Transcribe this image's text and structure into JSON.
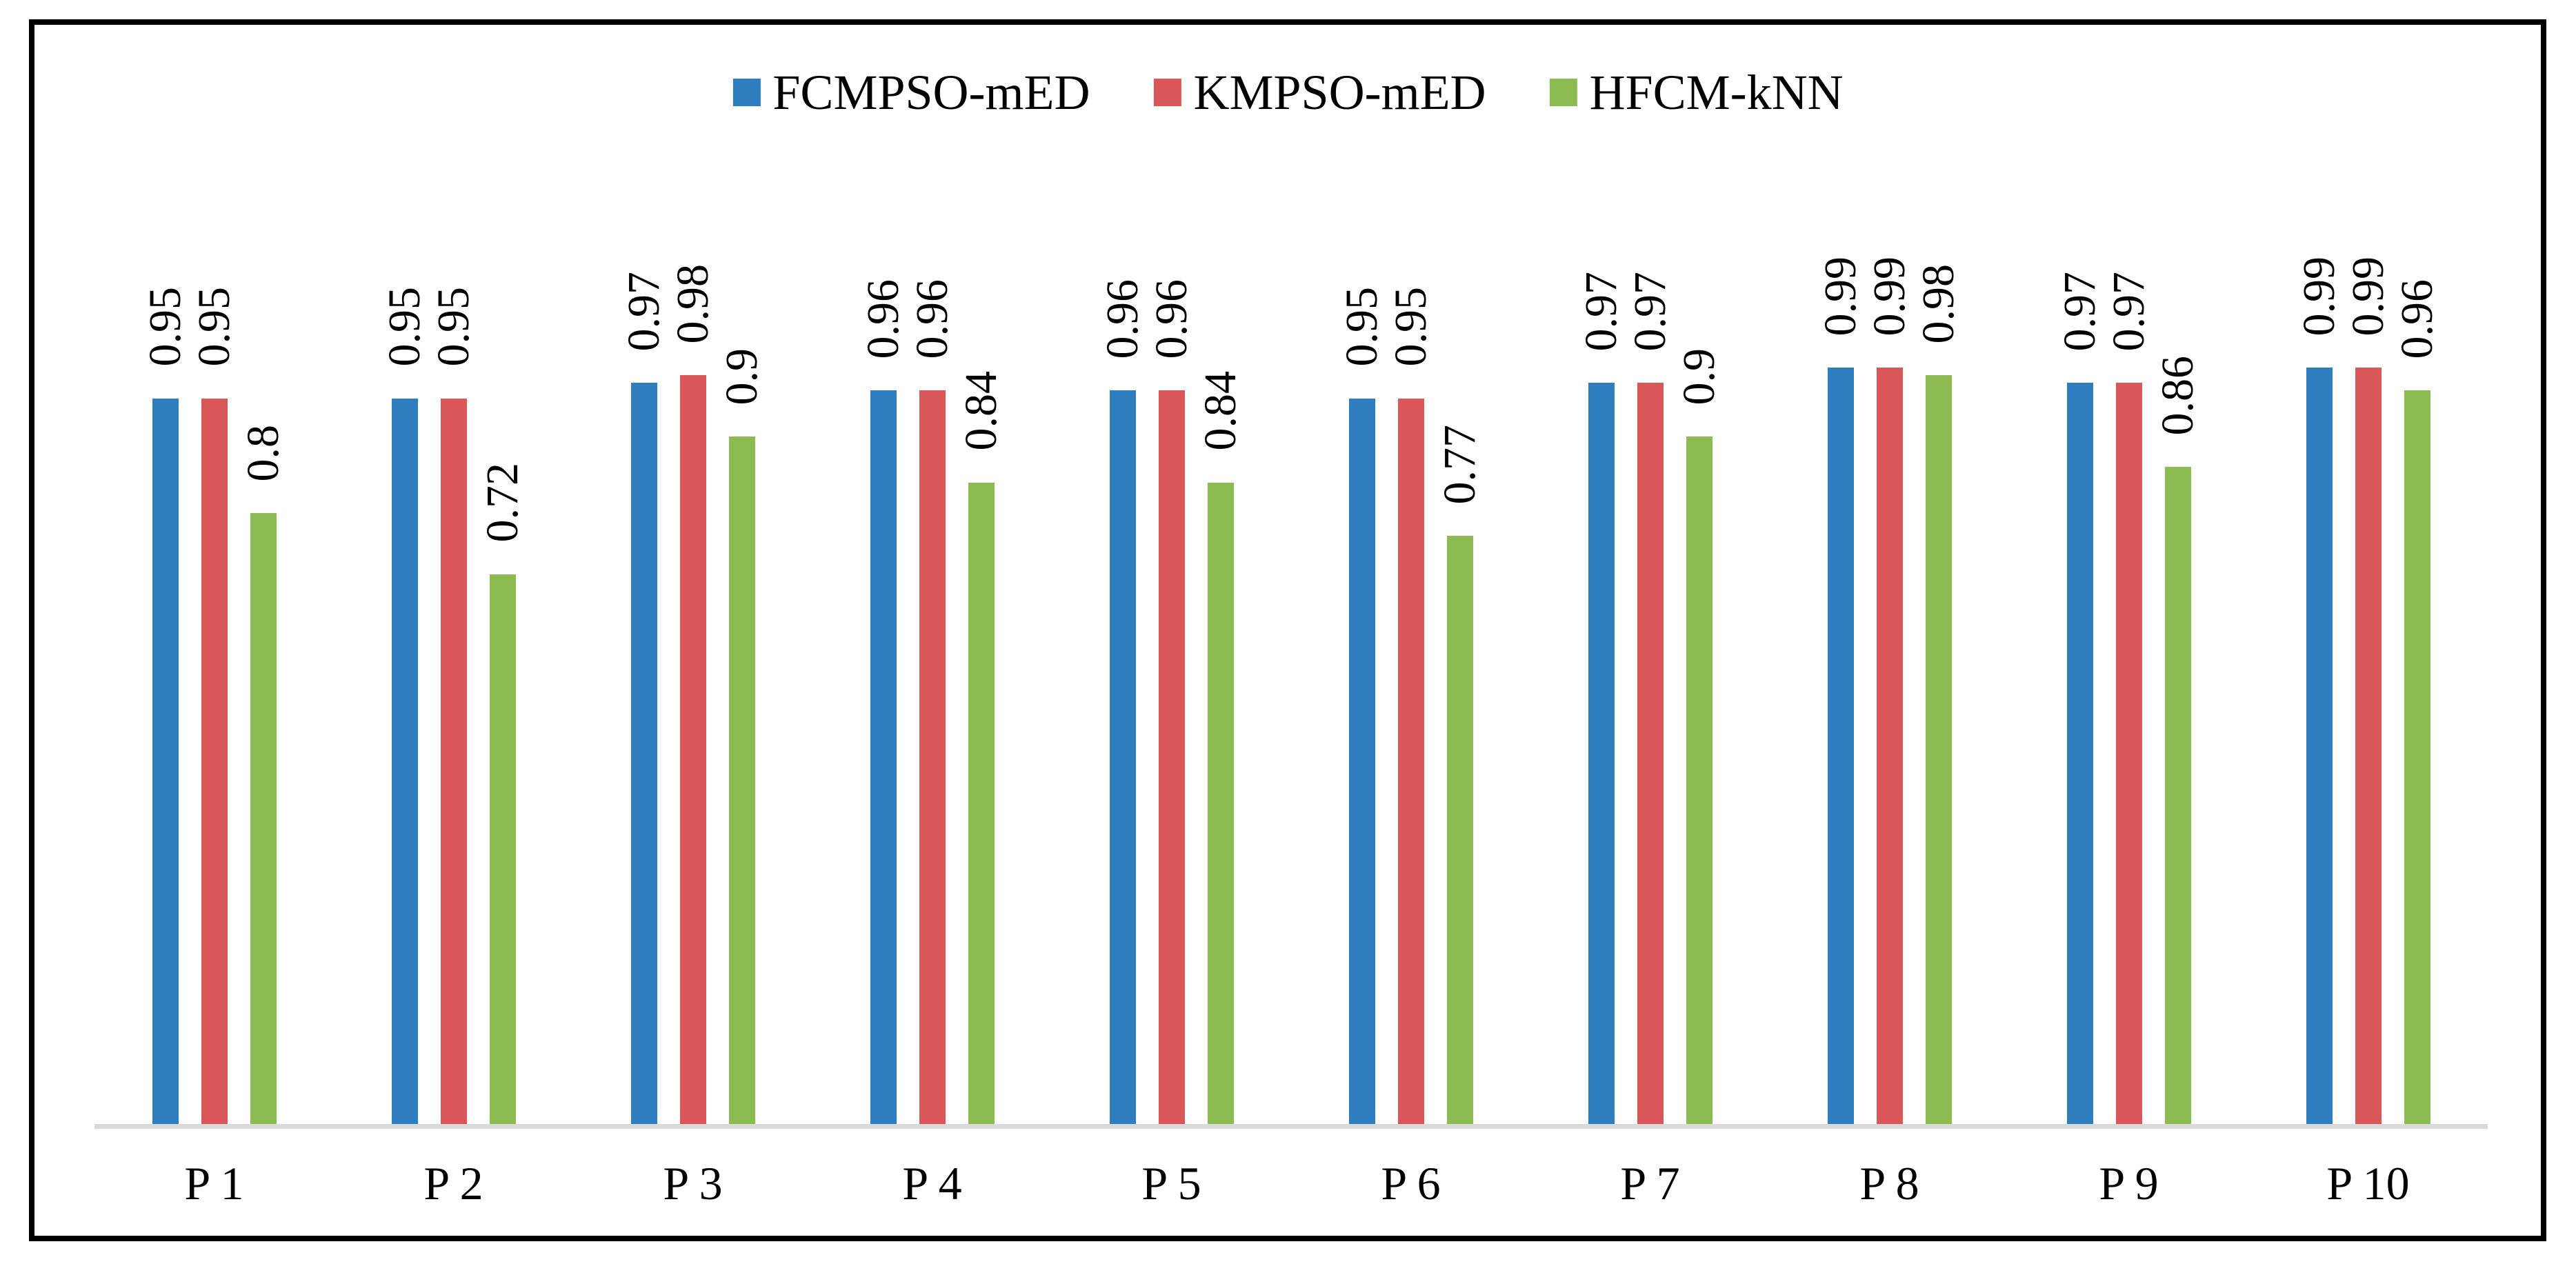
{
  "chart_data": {
    "type": "bar",
    "title": "",
    "xlabel": "",
    "ylabel": "",
    "ylim": [
      0,
      1
    ],
    "grid": false,
    "legend_position": "top-center",
    "value_label_rotation_deg": 90,
    "categories": [
      "P 1",
      "P 2",
      "P 3",
      "P 4",
      "P 5",
      "P 6",
      "P 7",
      "P 8",
      "P 9",
      "P 10"
    ],
    "series": [
      {
        "name": "FCMPSO-mED",
        "color": "#2e7dbe",
        "values": [
          0.95,
          0.95,
          0.97,
          0.96,
          0.96,
          0.95,
          0.97,
          0.99,
          0.97,
          0.99
        ],
        "labels": [
          "0.95",
          "0.95",
          "0.97",
          "0.96",
          "0.96",
          "0.95",
          "0.97",
          "0.99",
          "0.97",
          "0.99"
        ]
      },
      {
        "name": "KMPSO-mED",
        "color": "#d95758",
        "values": [
          0.95,
          0.95,
          0.98,
          0.96,
          0.96,
          0.95,
          0.97,
          0.99,
          0.97,
          0.99
        ],
        "labels": [
          "0.95",
          "0.95",
          "0.98",
          "0.96",
          "0.96",
          "0.95",
          "0.97",
          "0.99",
          "0.97",
          "0.99"
        ]
      },
      {
        "name": "HFCM-kNN",
        "color": "#8cbb52",
        "values": [
          0.8,
          0.72,
          0.9,
          0.84,
          0.84,
          0.77,
          0.9,
          0.98,
          0.86,
          0.96
        ],
        "labels": [
          "0.8",
          "0.72",
          "0.9",
          "0.84",
          "0.84",
          "0.77",
          "0.9",
          "0.98",
          "0.86",
          "0.96"
        ]
      }
    ],
    "colors": {
      "axis_line": "#d9d9d9",
      "frame_border": "#000000",
      "background": "#ffffff",
      "text": "#000000"
    }
  }
}
